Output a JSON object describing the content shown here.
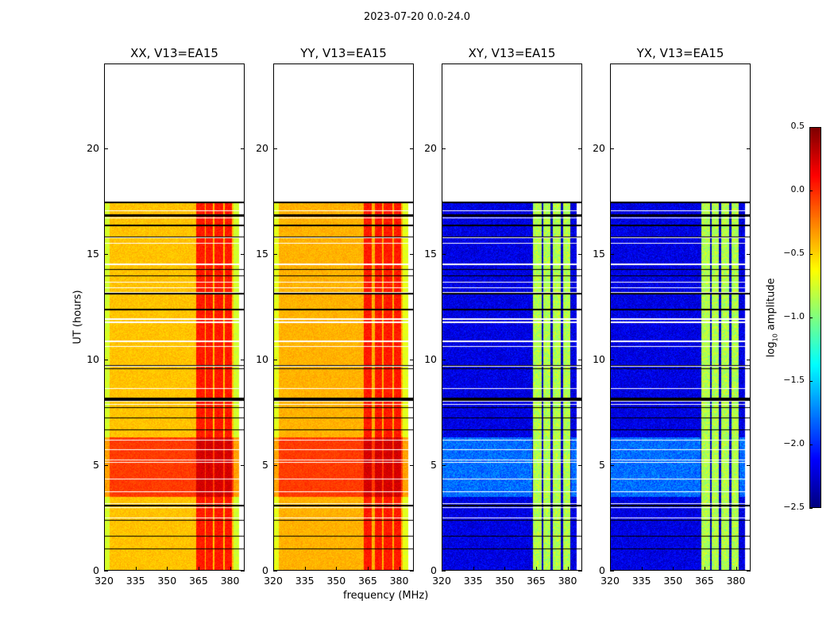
{
  "figure": {
    "title": "2023-07-20 0.0-24.0",
    "xlabel": "frequency (MHz)",
    "ylabel": "UT (hours)",
    "colorbar_label": "log10 amplitude",
    "colorbar_label_main": "log",
    "colorbar_label_sub": "10",
    "colorbar_label_rest": " amplitude"
  },
  "chart_data": {
    "type": "heatmap",
    "colormap": "jet",
    "xlim": [
      320,
      387
    ],
    "ylim": [
      0,
      24
    ],
    "xticks": [
      "320",
      "335",
      "350",
      "365",
      "380"
    ],
    "xtick_values": [
      320,
      335,
      350,
      365,
      380
    ],
    "yticks": [
      "0",
      "5",
      "10",
      "15",
      "20"
    ],
    "ytick_values": [
      0,
      5,
      10,
      15,
      20
    ],
    "data_end_hours": 17.5,
    "colorbar": {
      "range": [
        -2.5,
        0.5
      ],
      "ticks": [
        "0.5",
        "0.0",
        "−0.5",
        "−1.0",
        "−1.5",
        "−2.0",
        "−2.5"
      ],
      "tick_values": [
        0.5,
        0.0,
        -0.5,
        -1.0,
        -1.5,
        -2.0,
        -2.5
      ]
    },
    "panels": [
      {
        "title": "XX, V13=EA15",
        "base": -0.45,
        "strong_hours": [
          3.5,
          6.3
        ],
        "strong_level": -0.05,
        "band_level": 0.05,
        "bands": [
          [
            364,
            368
          ],
          [
            368.5,
            372
          ],
          [
            372.5,
            377
          ],
          [
            377.5,
            381
          ]
        ]
      },
      {
        "title": "YY, V13=EA15",
        "base": -0.4,
        "strong_hours": [
          3.5,
          6.3
        ],
        "strong_level": -0.05,
        "band_level": 0.05,
        "bands": [
          [
            363,
            367
          ],
          [
            368.5,
            372
          ],
          [
            372.5,
            377
          ],
          [
            377.5,
            381
          ]
        ]
      },
      {
        "title": "XY, V13=EA15",
        "base": -2.2,
        "strong_hours": [
          3.5,
          6.3
        ],
        "strong_level": -1.8,
        "band_level": -0.85,
        "bands": [
          [
            363.5,
            367.5
          ],
          [
            368.5,
            372
          ],
          [
            373,
            377
          ],
          [
            378,
            381.5
          ]
        ]
      },
      {
        "title": "YX, V13=EA15",
        "base": -2.2,
        "strong_hours": [
          3.5,
          6.3
        ],
        "strong_level": -1.8,
        "band_level": -0.85,
        "bands": [
          [
            363.5,
            367.5
          ],
          [
            368.5,
            372
          ],
          [
            373,
            377
          ],
          [
            378,
            381.5
          ]
        ]
      }
    ]
  }
}
